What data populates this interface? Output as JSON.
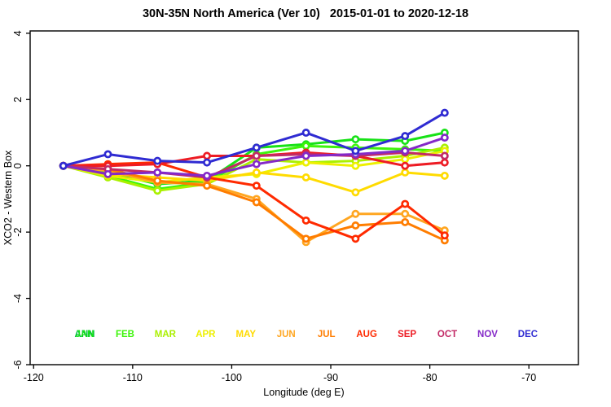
{
  "header": {
    "title": "30N-35N North America (Ver 10)   2015-01-01 to 2020-12-18"
  },
  "chart_data": {
    "type": "line",
    "title": "30N-35N North America (Ver 10)   2015-01-01 to 2020-12-18",
    "xlabel": "Longitude (deg E)",
    "ylabel": "XCO2 - Western Box",
    "xlim": [
      -120.35,
      -65.0
    ],
    "ylim": [
      -6.0,
      4.07
    ],
    "x_ticks": [
      -120,
      -110,
      -100,
      -90,
      -80,
      -70
    ],
    "y_ticks": [
      -6,
      -4,
      -2,
      0,
      2,
      4
    ],
    "grid": false,
    "marker": "open-circle",
    "legend_position": "bottom-inside",
    "annual_label": {
      "label": "ANN",
      "color": "#00BB44",
      "overlaps": "JAN"
    },
    "x": [
      -117,
      -112.5,
      -107.5,
      -102.5,
      -97.5,
      -92.5,
      -87.5,
      -82.5,
      -78.5
    ],
    "series": [
      {
        "name": "JAN",
        "color": "#17E217",
        "values": [
          0,
          -0.2,
          -0.55,
          -0.45,
          0.55,
          0.65,
          0.8,
          0.75,
          1.0
        ]
      },
      {
        "name": "FEB",
        "color": "#3DF50A",
        "values": [
          0,
          -0.3,
          -0.7,
          -0.5,
          0.35,
          0.6,
          0.55,
          0.5,
          0.45
        ]
      },
      {
        "name": "MAR",
        "color": "#AAF000",
        "values": [
          0,
          -0.35,
          -0.75,
          -0.55,
          0.2,
          0.1,
          0.15,
          0.3,
          0.55
        ]
      },
      {
        "name": "APR",
        "color": "#EDF000",
        "values": [
          0,
          -0.3,
          -0.5,
          -0.35,
          -0.25,
          0.1,
          0.0,
          0.2,
          0.45
        ]
      },
      {
        "name": "MAY",
        "color": "#FFDB00",
        "values": [
          0,
          -0.25,
          -0.35,
          -0.45,
          -0.2,
          -0.35,
          -0.8,
          -0.2,
          -0.3
        ]
      },
      {
        "name": "JUN",
        "color": "#FFA621",
        "values": [
          0,
          -0.15,
          -0.5,
          -0.55,
          -1.0,
          -2.3,
          -1.45,
          -1.45,
          -1.95
        ]
      },
      {
        "name": "JUL",
        "color": "#FF7D00",
        "values": [
          0,
          -0.1,
          -0.45,
          -0.6,
          -1.1,
          -2.2,
          -1.8,
          -1.7,
          -2.25
        ]
      },
      {
        "name": "AUG",
        "color": "#FF2A00",
        "values": [
          0,
          0.05,
          0.1,
          -0.35,
          -0.6,
          -1.65,
          -2.2,
          -1.15,
          -2.1
        ]
      },
      {
        "name": "SEP",
        "color": "#ED1C24",
        "values": [
          0,
          0.0,
          0.05,
          0.3,
          0.3,
          0.4,
          0.3,
          0.0,
          0.1
        ]
      },
      {
        "name": "OCT",
        "color": "#C22A66",
        "values": [
          0,
          -0.1,
          -0.2,
          -0.35,
          0.3,
          0.35,
          0.3,
          0.4,
          0.3
        ]
      },
      {
        "name": "NOV",
        "color": "#8429C8",
        "values": [
          0,
          -0.25,
          -0.2,
          -0.3,
          0.05,
          0.3,
          0.35,
          0.45,
          0.85
        ]
      },
      {
        "name": "DEC",
        "color": "#2F2BD2",
        "values": [
          0,
          0.35,
          0.15,
          0.1,
          0.55,
          1.0,
          0.45,
          0.9,
          1.6
        ]
      }
    ]
  }
}
